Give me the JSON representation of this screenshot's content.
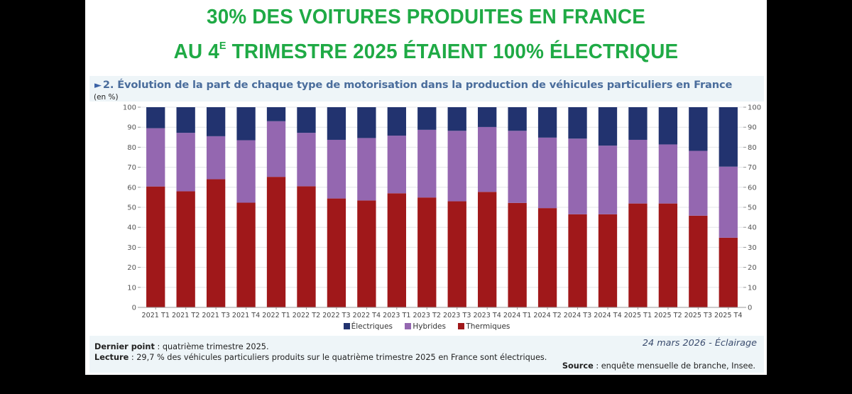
{
  "headline": {
    "line1": "30% DES VOITURES PRODUITES EN FRANCE",
    "line2_prefix": "AU 4",
    "line2_sup": "E",
    "line2_suffix": " TRIMESTRE 2025 ÉTAIENT 100% ÉLECTRIQUE"
  },
  "figure": {
    "marker": "►",
    "title": "2. Évolution de la part de chaque type de motorisation dans la production de véhicules particuliers en France",
    "unit": "(en %)"
  },
  "colors": {
    "headline": "#1faa45",
    "electriques": "#22336f",
    "hybrides": "#9467b0",
    "thermiques": "#a0181a"
  },
  "chart_data": {
    "type": "bar",
    "stacked": true,
    "title": "2. Évolution de la part de chaque type de motorisation dans la production de véhicules particuliers en France",
    "xlabel": "",
    "ylabel": "(en %)",
    "ylim": [
      0,
      100
    ],
    "yticks": [
      0,
      10,
      20,
      30,
      40,
      50,
      60,
      70,
      80,
      90,
      100
    ],
    "grid": true,
    "legend_position": "bottom",
    "categories": [
      "2021 T1",
      "2021 T2",
      "2021 T3",
      "2021 T4",
      "2022 T1",
      "2022 T2",
      "2022 T3",
      "2022 T4",
      "2023 T1",
      "2023 T2",
      "2023 T3",
      "2023 T4",
      "2024 T1",
      "2024 T2",
      "2024 T3",
      "2024 T4",
      "2025 T1",
      "2025 T2",
      "2025 T3",
      "2025 T4"
    ],
    "series": [
      {
        "name": "Thermiques",
        "values": [
          60.4,
          58.0,
          64.0,
          52.3,
          65.2,
          60.5,
          54.4,
          53.4,
          57.0,
          54.9,
          53.0,
          57.7,
          52.2,
          49.6,
          46.5,
          46.5,
          51.9,
          51.9,
          45.8,
          34.8
        ]
      },
      {
        "name": "Hybrides",
        "values": [
          29.1,
          29.2,
          21.5,
          31.2,
          27.8,
          26.7,
          29.3,
          31.2,
          28.8,
          33.8,
          35.2,
          32.4,
          36.0,
          35.2,
          37.8,
          34.3,
          31.8,
          29.5,
          32.4,
          35.5
        ]
      },
      {
        "name": "Électriques",
        "values": [
          10.5,
          12.8,
          14.5,
          16.5,
          7.0,
          12.8,
          16.3,
          15.4,
          14.2,
          11.3,
          11.8,
          9.9,
          11.8,
          15.2,
          15.7,
          19.2,
          16.3,
          18.6,
          21.8,
          29.7
        ]
      }
    ],
    "legend": [
      "Électriques",
      "Hybrides",
      "Thermiques"
    ]
  },
  "footer": {
    "dernier_point_label": "Dernier point",
    "dernier_point_text": " : quatrième trimestre 2025.",
    "lecture_label": "Lecture",
    "lecture_text": " : 29,7 % des véhicules particuliers produits sur le quatrième trimestre 2025 en France sont électriques.",
    "date": "24 mars 2026 - Éclairage",
    "source_label": "Source",
    "source_text": " : enquête mensuelle de branche, Insee."
  }
}
